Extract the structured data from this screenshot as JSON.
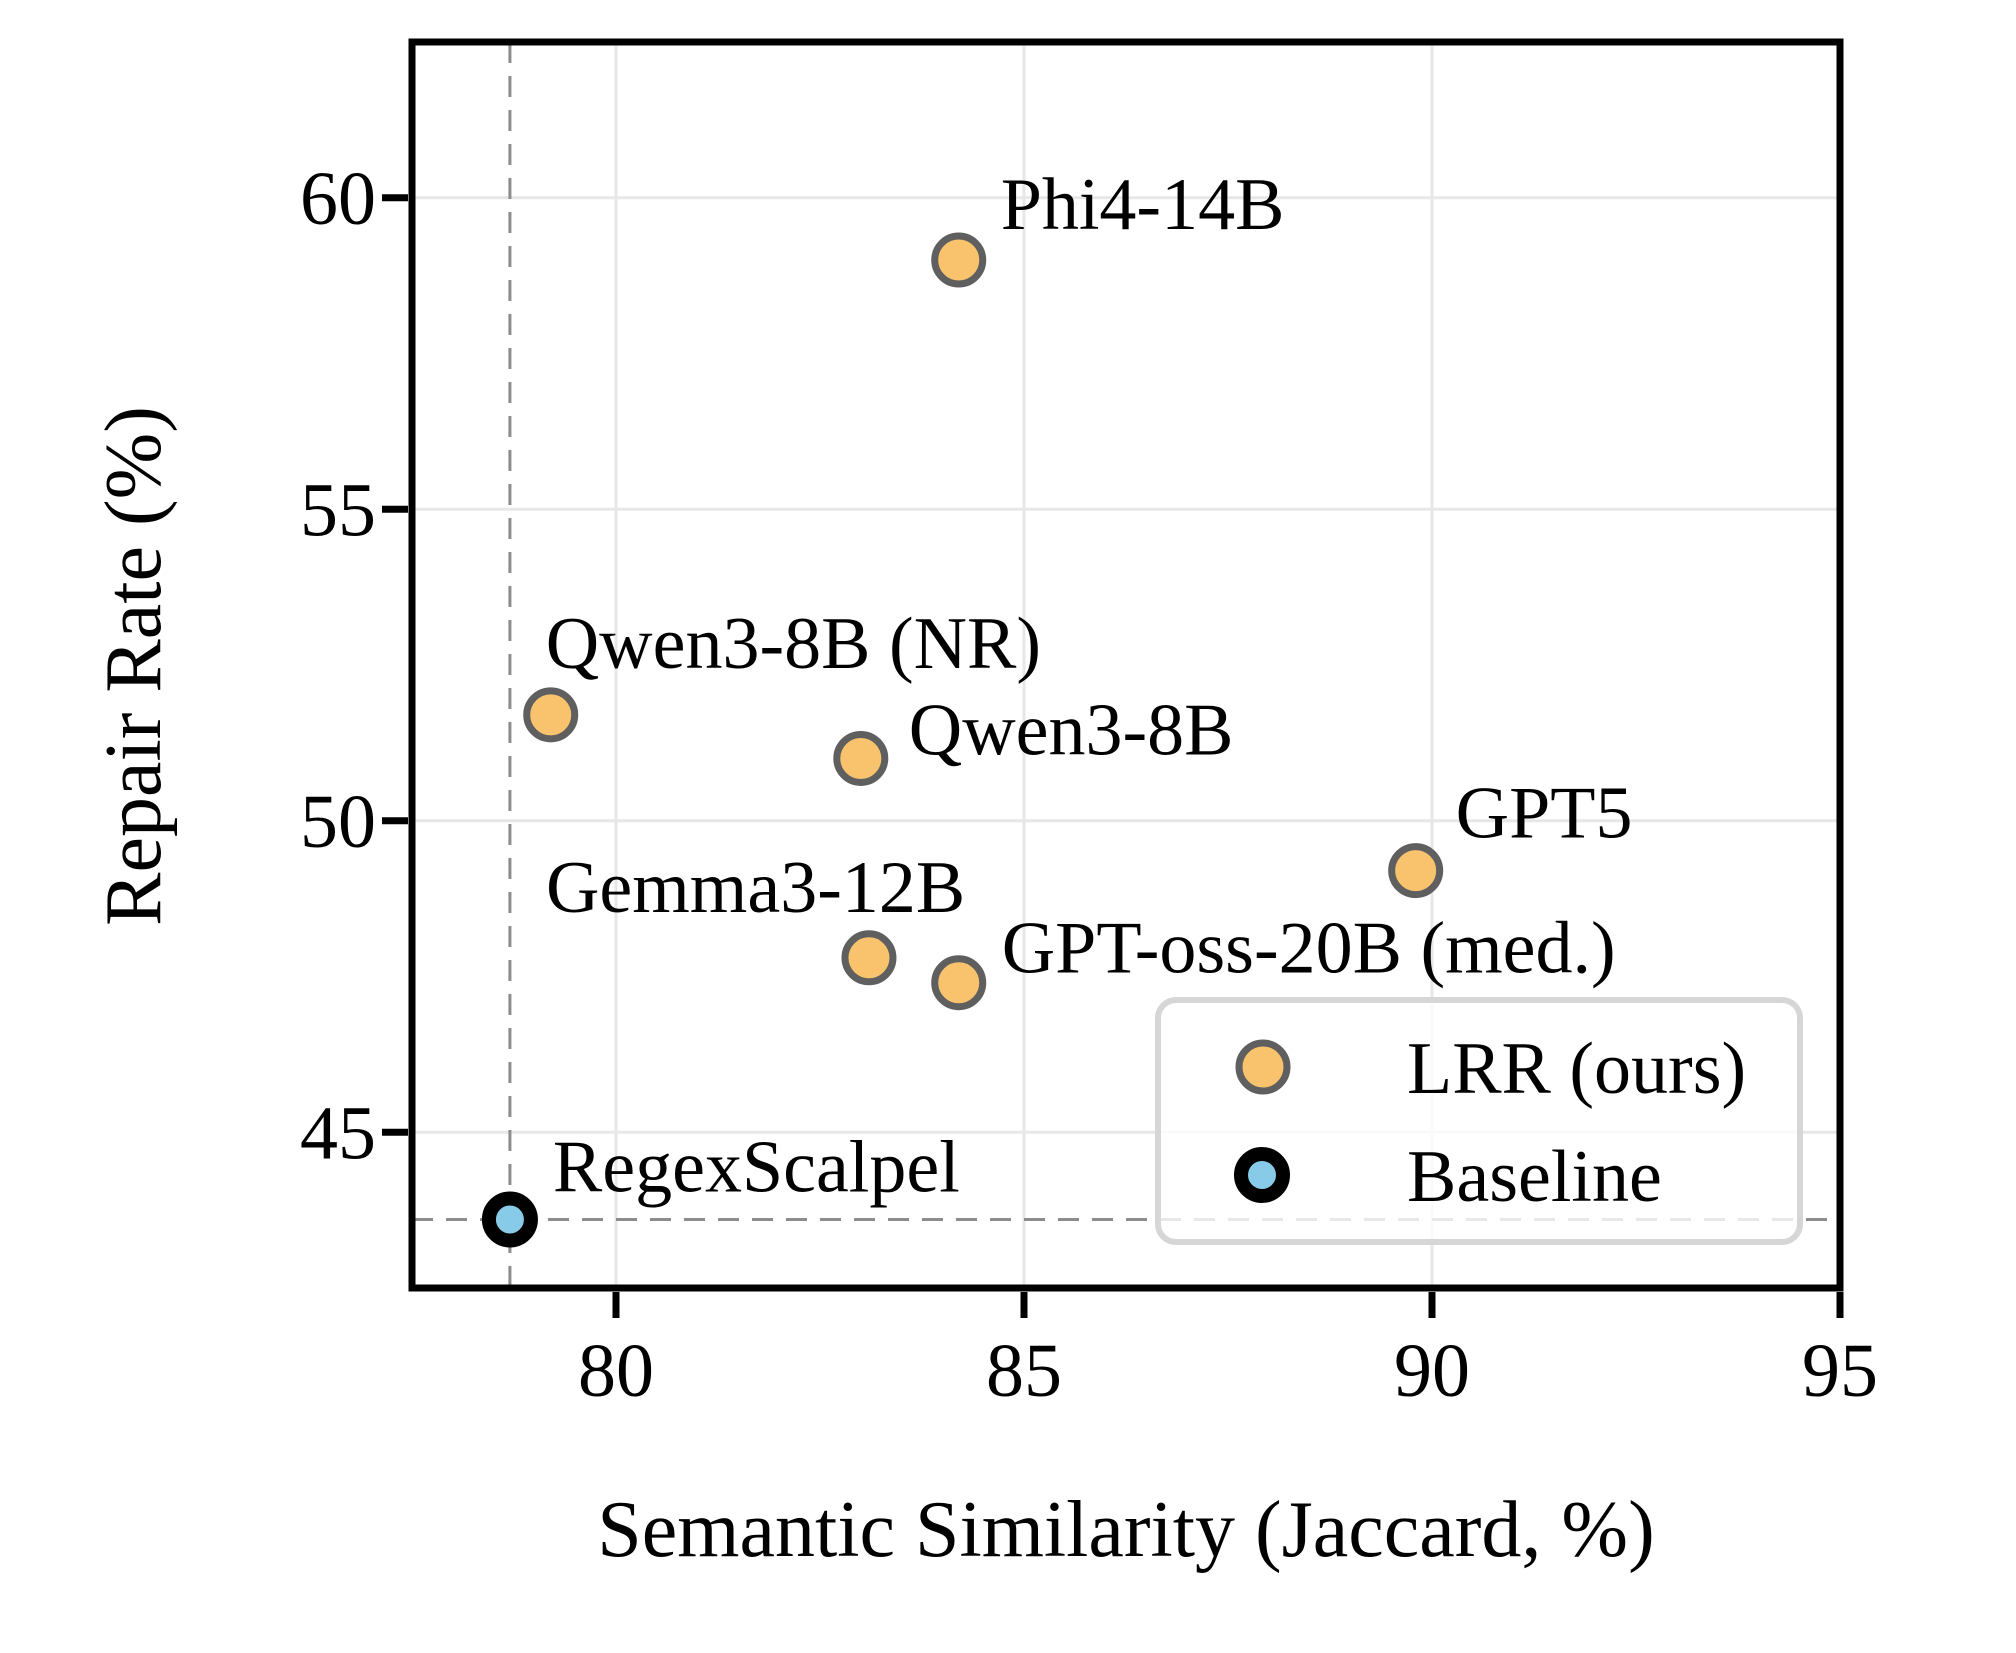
{
  "chart_data": {
    "type": "scatter",
    "title": "",
    "xlabel": "Semantic Similarity (Jaccard, %)",
    "ylabel": "Repair Rate (%)",
    "xlim": [
      77.5,
      95
    ],
    "ylim": [
      42.5,
      62.5
    ],
    "x_ticks": [
      80,
      85,
      90,
      95
    ],
    "y_ticks": [
      45,
      50,
      55,
      60
    ],
    "grid": true,
    "legend_position": "lower right",
    "series": [
      {
        "name": "LRR (ours)",
        "marker_fill": "#F9C36D",
        "marker_edge": "#5F5F5F",
        "points": [
          {
            "label": "Phi4-14B",
            "x": 84.2,
            "y": 59.0
          },
          {
            "label": "Qwen3-8B (NR)",
            "x": 79.2,
            "y": 51.7
          },
          {
            "label": "Qwen3-8B",
            "x": 83.0,
            "y": 51.0
          },
          {
            "label": "Gemma3-12B",
            "x": 83.1,
            "y": 47.8
          },
          {
            "label": "GPT-oss-20B (med.)",
            "x": 84.2,
            "y": 47.4
          },
          {
            "label": "GPT5",
            "x": 89.8,
            "y": 49.2
          }
        ]
      },
      {
        "name": "Baseline",
        "marker_fill": "#87CBE8",
        "marker_edge": "#000000",
        "points": [
          {
            "label": "RegexScalpel",
            "x": 78.7,
            "y": 43.6
          }
        ]
      }
    ],
    "reference_lines": {
      "vertical_x": 78.7,
      "horizontal_y": 43.6,
      "style": "dashed"
    }
  },
  "colors": {
    "grid": "#E7E7E7",
    "spine": "#000000",
    "dashed_line": "#8C8C8C",
    "legend_border": "#D6D6D6",
    "lrr_fill": "#F9C36D",
    "lrr_edge": "#5F5F5F",
    "baseline_fill": "#87CBE8",
    "baseline_edge": "#000000"
  }
}
